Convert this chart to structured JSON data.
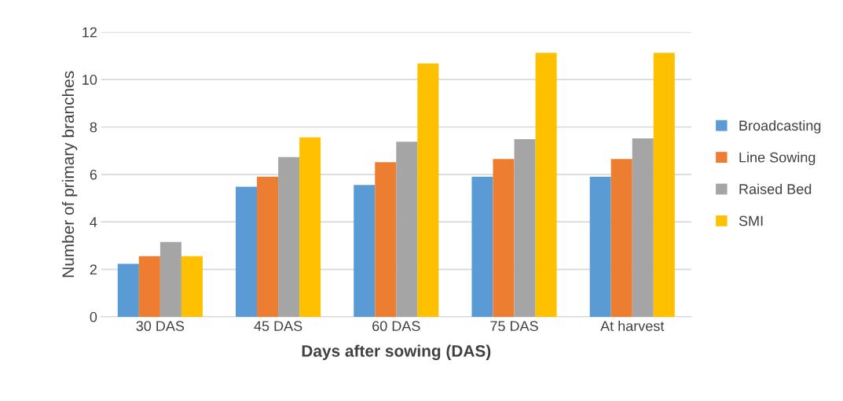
{
  "chart_data": {
    "type": "bar",
    "xlabel": "Days after sowing (DAS)",
    "ylabel": "Number of primary branches",
    "categories": [
      "30 DAS",
      "45 DAS",
      "60 DAS",
      "75 DAS",
      "At harvest"
    ],
    "series": [
      {
        "name": "Broadcasting",
        "color": "#5b9bd5",
        "values": [
          2.23,
          5.48,
          5.56,
          5.9,
          5.9
        ]
      },
      {
        "name": "Line Sowing",
        "color": "#ed7d31",
        "values": [
          2.56,
          5.9,
          6.52,
          6.65,
          6.65
        ]
      },
      {
        "name": "Raised Bed",
        "color": "#a5a5a5",
        "values": [
          3.15,
          6.73,
          7.38,
          7.49,
          7.52
        ]
      },
      {
        "name": "SMI",
        "color": "#ffc000",
        "values": [
          2.56,
          7.56,
          10.68,
          11.12,
          11.12
        ]
      }
    ],
    "ylim": [
      0,
      12
    ],
    "yticks": [
      0,
      2,
      4,
      6,
      8,
      10,
      12
    ],
    "grid": "y",
    "legend": "right"
  }
}
